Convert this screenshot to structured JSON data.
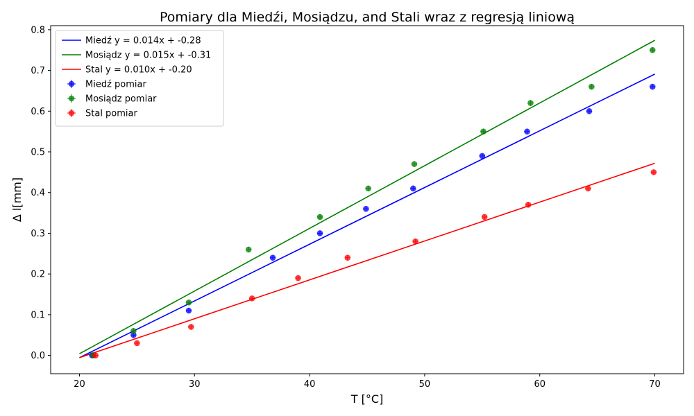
{
  "chart_data": {
    "type": "scatter",
    "title": "Pomiary dla Miedźi, Mosiądzu, and Stali wraz z regresją liniową",
    "xlabel": "T [°C]",
    "ylabel": "Δ l[mm]",
    "xlim": [
      17.5,
      72.5
    ],
    "ylim": [
      -0.045,
      0.81
    ],
    "xticks": [
      20,
      30,
      40,
      50,
      60,
      70
    ],
    "xtick_labels": [
      "20",
      "30",
      "40",
      "50",
      "60",
      "70"
    ],
    "yticks": [
      0.0,
      0.1,
      0.2,
      0.3,
      0.4,
      0.5,
      0.6,
      0.7,
      0.8
    ],
    "ytick_labels": [
      "0.0",
      "0.1",
      "0.2",
      "0.3",
      "0.4",
      "0.5",
      "0.6",
      "0.7",
      "0.8"
    ],
    "grid": false,
    "legend_position": "top-left",
    "lines": [
      {
        "name": "Miedź y = 0.014x + -0.28",
        "color": "#0000ff",
        "x": [
          20,
          70
        ],
        "y": [
          -0.0055,
          0.691
        ]
      },
      {
        "name": "Mosiądz y = 0.015x + -0.31",
        "color": "#008000",
        "x": [
          20,
          70
        ],
        "y": [
          0.004,
          0.774
        ]
      },
      {
        "name": "Stal y = 0.010x + -0.20",
        "color": "#ff0000",
        "x": [
          20,
          70
        ],
        "y": [
          -0.0055,
          0.472
        ]
      }
    ],
    "series": [
      {
        "name": "Miedź pomiar",
        "color": "#0000ff",
        "x": [
          21.1,
          24.7,
          29.5,
          36.8,
          40.9,
          44.9,
          49.0,
          55.0,
          58.9,
          64.3,
          69.8
        ],
        "y": [
          0.0,
          0.05,
          0.11,
          0.24,
          0.3,
          0.36,
          0.41,
          0.49,
          0.55,
          0.6,
          0.66
        ]
      },
      {
        "name": "Mosiądz pomiar",
        "color": "#008000",
        "x": [
          21.2,
          24.7,
          29.5,
          34.7,
          40.9,
          45.1,
          49.1,
          55.1,
          59.2,
          64.5,
          69.8
        ],
        "y": [
          0.0,
          0.06,
          0.13,
          0.26,
          0.34,
          0.41,
          0.47,
          0.55,
          0.62,
          0.66,
          0.75
        ]
      },
      {
        "name": "Stal pomiar",
        "color": "#ff0000",
        "x": [
          21.4,
          25.0,
          29.7,
          35.0,
          39.0,
          43.3,
          49.2,
          55.2,
          59.0,
          64.2,
          69.9
        ],
        "y": [
          0.0,
          0.03,
          0.07,
          0.14,
          0.19,
          0.24,
          0.28,
          0.34,
          0.37,
          0.41,
          0.45
        ]
      }
    ]
  }
}
